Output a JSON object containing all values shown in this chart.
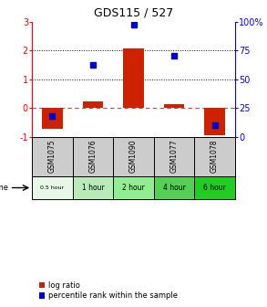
{
  "title": "GDS115 / 527",
  "samples": [
    "GSM1075",
    "GSM1076",
    "GSM1090",
    "GSM1077",
    "GSM1078"
  ],
  "time_labels": [
    "0.5 hour",
    "1 hour",
    "2 hour",
    "4 hour",
    "6 hour"
  ],
  "time_colors": [
    "#e8f8e8",
    "#b8ebb8",
    "#90ee90",
    "#55d055",
    "#22cc22"
  ],
  "log_ratios": [
    -0.72,
    0.22,
    2.05,
    0.12,
    -0.95
  ],
  "percentile_ranks": [
    18,
    62,
    97,
    70,
    10
  ],
  "ylim_left": [
    -1,
    3
  ],
  "ylim_right": [
    0,
    100
  ],
  "yticks_left": [
    -1,
    0,
    1,
    2,
    3
  ],
  "yticks_right": [
    0,
    25,
    50,
    75,
    100
  ],
  "bar_color": "#cc2200",
  "dot_color": "#0000cc",
  "zero_line_color": "#cc4444",
  "dotted_line_color": "#000000",
  "bg_color": "#ffffff",
  "sample_bg": "#cccccc",
  "legend_log_ratio": "log ratio",
  "legend_percentile": "percentile rank within the sample"
}
